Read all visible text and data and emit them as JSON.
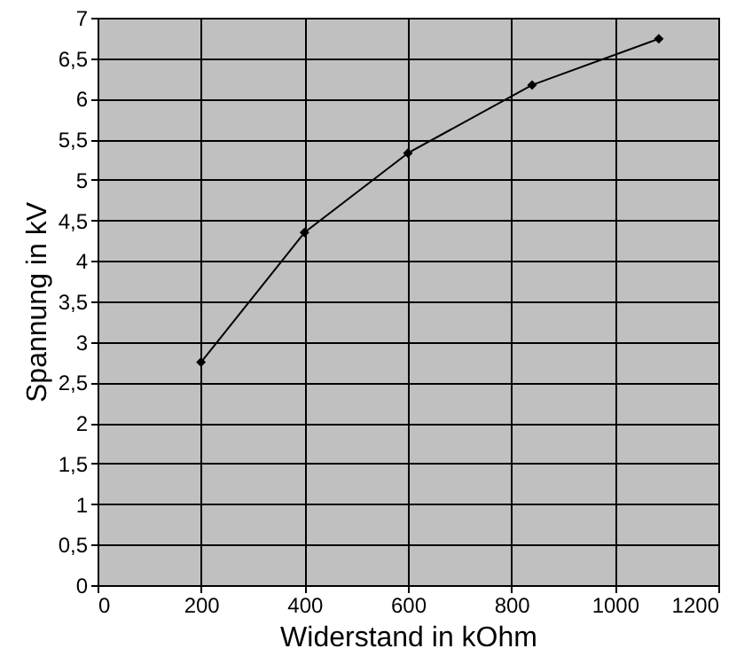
{
  "chart_data": {
    "type": "line",
    "xlabel": "Widerstand in kOhm",
    "ylabel": "Spannung in kV",
    "x": [
      200,
      400,
      600,
      840,
      1085
    ],
    "series": [
      {
        "color": "#000000",
        "values": [
          2.75,
          4.35,
          5.33,
          6.17,
          6.74
        ]
      }
    ],
    "xlim": [
      0,
      1200
    ],
    "xticks": [
      0,
      200,
      400,
      600,
      800,
      1000,
      1200
    ],
    "ylim": [
      0,
      7
    ],
    "yticks": [
      0,
      {
        "value": 0.5,
        "label": "0,5"
      },
      1,
      {
        "value": 1.5,
        "label": "1,5"
      },
      2,
      {
        "value": 2.5,
        "label": "2,5"
      },
      3,
      {
        "value": 3.5,
        "label": "3,5"
      },
      4,
      {
        "value": 4.5,
        "label": "4,5"
      },
      5,
      {
        "value": 5.5,
        "label": "5,5"
      },
      6,
      {
        "value": 6.5,
        "label": "6,5"
      },
      7
    ],
    "grid": true,
    "marker": "diamond",
    "line_style": "solid"
  }
}
